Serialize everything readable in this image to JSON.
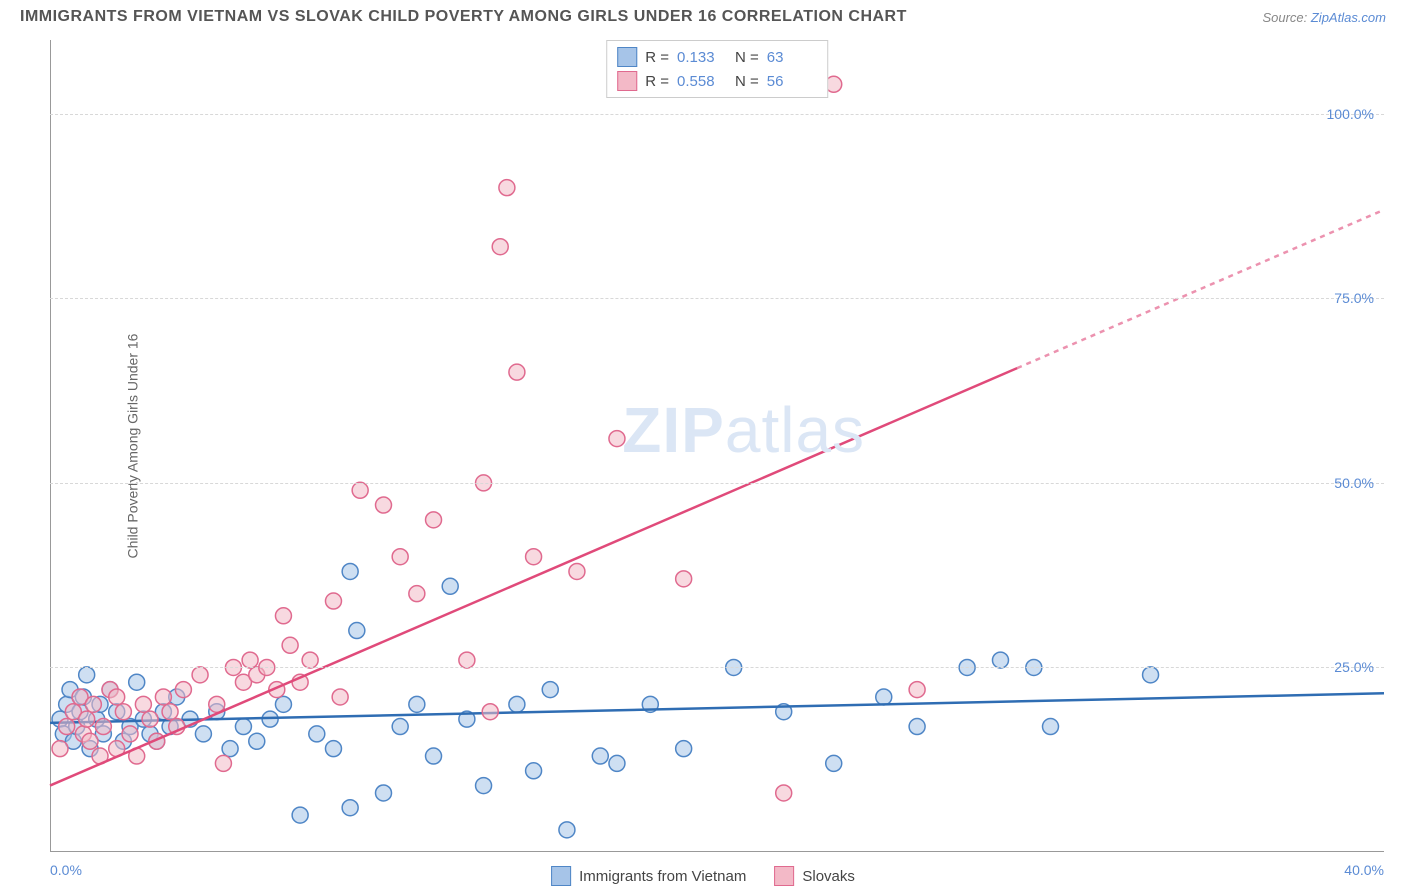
{
  "header": {
    "title": "IMMIGRANTS FROM VIETNAM VS SLOVAK CHILD POVERTY AMONG GIRLS UNDER 16 CORRELATION CHART",
    "source_prefix": "Source: ",
    "source_link": "ZipAtlas.com"
  },
  "watermark": {
    "bold": "ZIP",
    "light": "atlas"
  },
  "chart": {
    "type": "scatter",
    "xlim": [
      0,
      40
    ],
    "ylim": [
      0,
      110
    ],
    "x_ticks": [
      {
        "v": 0,
        "label": "0.0%"
      },
      {
        "v": 40,
        "label": "40.0%"
      }
    ],
    "y_ticks": [
      {
        "v": 25,
        "label": "25.0%"
      },
      {
        "v": 50,
        "label": "50.0%"
      },
      {
        "v": 75,
        "label": "75.0%"
      },
      {
        "v": 100,
        "label": "100.0%"
      }
    ],
    "y_axis_label": "Child Poverty Among Girls Under 16",
    "grid_color": "#d8d8d8",
    "background_color": "#ffffff",
    "marker_radius": 8,
    "marker_stroke_width": 1.5,
    "trend_line_width": 2.5,
    "series": [
      {
        "name": "Immigrants from Vietnam",
        "fill": "#a6c4e8",
        "fill_opacity": 0.55,
        "stroke": "#4f86c6",
        "line_color": "#2f6db3",
        "R": "0.133",
        "N": "63",
        "trend": {
          "x1": 0,
          "y1": 17.5,
          "x2": 40,
          "y2": 21.5,
          "dash_after_x": 40
        },
        "points": [
          [
            0.3,
            18
          ],
          [
            0.4,
            16
          ],
          [
            0.5,
            20
          ],
          [
            0.6,
            22
          ],
          [
            0.7,
            15
          ],
          [
            0.8,
            17
          ],
          [
            0.9,
            19
          ],
          [
            1.0,
            21
          ],
          [
            1.1,
            24
          ],
          [
            1.2,
            14
          ],
          [
            1.4,
            18
          ],
          [
            1.5,
            20
          ],
          [
            1.6,
            16
          ],
          [
            1.8,
            22
          ],
          [
            2.0,
            19
          ],
          [
            2.2,
            15
          ],
          [
            2.4,
            17
          ],
          [
            2.6,
            23
          ],
          [
            2.8,
            18
          ],
          [
            3.0,
            16
          ],
          [
            3.2,
            15
          ],
          [
            3.4,
            19
          ],
          [
            3.6,
            17
          ],
          [
            3.8,
            21
          ],
          [
            4.2,
            18
          ],
          [
            4.6,
            16
          ],
          [
            5.0,
            19
          ],
          [
            5.4,
            14
          ],
          [
            5.8,
            17
          ],
          [
            6.2,
            15
          ],
          [
            6.6,
            18
          ],
          [
            7.0,
            20
          ],
          [
            7.5,
            5
          ],
          [
            8.0,
            16
          ],
          [
            8.5,
            14
          ],
          [
            9.0,
            6
          ],
          [
            9.0,
            38
          ],
          [
            9.2,
            30
          ],
          [
            10.0,
            8
          ],
          [
            10.5,
            17
          ],
          [
            11.0,
            20
          ],
          [
            11.5,
            13
          ],
          [
            12.0,
            36
          ],
          [
            12.5,
            18
          ],
          [
            13.0,
            9
          ],
          [
            14.0,
            20
          ],
          [
            14.5,
            11
          ],
          [
            15.0,
            22
          ],
          [
            15.5,
            3
          ],
          [
            16.5,
            13
          ],
          [
            17.0,
            12
          ],
          [
            18.0,
            20
          ],
          [
            19.0,
            14
          ],
          [
            20.5,
            25
          ],
          [
            22.0,
            19
          ],
          [
            23.5,
            12
          ],
          [
            25.0,
            21
          ],
          [
            26.0,
            17
          ],
          [
            27.5,
            25
          ],
          [
            28.5,
            26
          ],
          [
            29.5,
            25
          ],
          [
            30.0,
            17
          ],
          [
            33.0,
            24
          ]
        ]
      },
      {
        "name": "Slovaks",
        "fill": "#f3b9c7",
        "fill_opacity": 0.55,
        "stroke": "#e06a8f",
        "line_color": "#e04a7a",
        "R": "0.558",
        "N": "56",
        "trend": {
          "x1": 0,
          "y1": 9,
          "x2": 40,
          "y2": 87,
          "dash_after_x": 29
        },
        "points": [
          [
            0.3,
            14
          ],
          [
            0.5,
            17
          ],
          [
            0.7,
            19
          ],
          [
            0.9,
            21
          ],
          [
            1.0,
            16
          ],
          [
            1.1,
            18
          ],
          [
            1.2,
            15
          ],
          [
            1.3,
            20
          ],
          [
            1.5,
            13
          ],
          [
            1.6,
            17
          ],
          [
            1.8,
            22
          ],
          [
            2.0,
            14
          ],
          [
            2.0,
            21
          ],
          [
            2.2,
            19
          ],
          [
            2.4,
            16
          ],
          [
            2.6,
            13
          ],
          [
            2.8,
            20
          ],
          [
            3.0,
            18
          ],
          [
            3.2,
            15
          ],
          [
            3.4,
            21
          ],
          [
            3.6,
            19
          ],
          [
            3.8,
            17
          ],
          [
            4.0,
            22
          ],
          [
            4.5,
            24
          ],
          [
            5.0,
            20
          ],
          [
            5.2,
            12
          ],
          [
            5.5,
            25
          ],
          [
            5.8,
            23
          ],
          [
            6.0,
            26
          ],
          [
            6.2,
            24
          ],
          [
            6.5,
            25
          ],
          [
            6.8,
            22
          ],
          [
            7.0,
            32
          ],
          [
            7.2,
            28
          ],
          [
            7.5,
            23
          ],
          [
            7.8,
            26
          ],
          [
            8.5,
            34
          ],
          [
            8.7,
            21
          ],
          [
            9.3,
            49
          ],
          [
            10.0,
            47
          ],
          [
            10.5,
            40
          ],
          [
            11.0,
            35
          ],
          [
            11.5,
            45
          ],
          [
            12.5,
            26
          ],
          [
            13.0,
            50
          ],
          [
            13.2,
            19
          ],
          [
            13.5,
            82
          ],
          [
            13.7,
            90
          ],
          [
            14.0,
            65
          ],
          [
            14.5,
            40
          ],
          [
            15.8,
            38
          ],
          [
            17.0,
            56
          ],
          [
            19.0,
            37
          ],
          [
            22.0,
            8
          ],
          [
            23.5,
            104
          ],
          [
            26.0,
            22
          ]
        ]
      }
    ],
    "bottom_legend": [
      {
        "swatch_fill": "#a6c4e8",
        "swatch_stroke": "#4f86c6",
        "label": "Immigrants from Vietnam"
      },
      {
        "swatch_fill": "#f3b9c7",
        "swatch_stroke": "#e06a8f",
        "label": "Slovaks"
      }
    ]
  }
}
